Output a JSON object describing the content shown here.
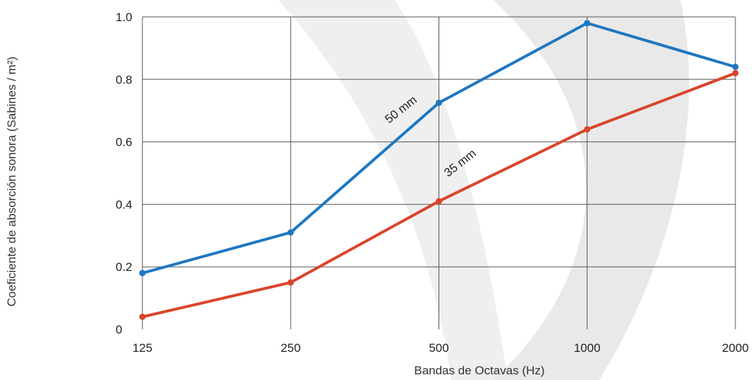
{
  "chart_data": {
    "type": "line",
    "xlabel": "Bandas de Octavas (Hz)",
    "ylabel": "Coeficiente de absorción sonora (Sabines / m²)",
    "categories": [
      "125",
      "250",
      "500",
      "1000",
      "2000"
    ],
    "yticks": [
      "0",
      "0.2",
      "0.4",
      "0.6",
      "0.8",
      "1.0"
    ],
    "ylim": [
      0,
      1.0
    ],
    "grid": true,
    "series": [
      {
        "name": "50 mm",
        "color": "#1f77c0",
        "values": [
          0.18,
          0.31,
          0.725,
          0.98,
          0.84
        ]
      },
      {
        "name": "35 mm",
        "color": "#d9452b",
        "values": [
          0.04,
          0.15,
          0.41,
          0.64,
          0.82
        ]
      }
    ]
  },
  "colors": {
    "grid": "#555555",
    "background_swoosh": "#ececec"
  }
}
